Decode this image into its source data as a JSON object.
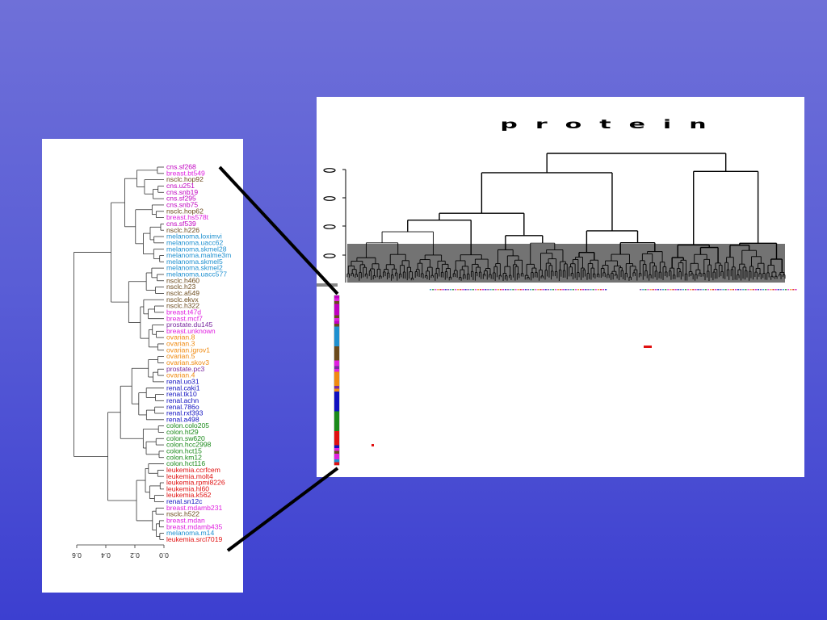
{
  "left_dendrogram": {
    "leaves": [
      {
        "label": "cns.sf268",
        "color": "#c000c0"
      },
      {
        "label": "breast.bt549",
        "color": "#e020e0"
      },
      {
        "label": "nsclc.hop92",
        "color": "#6b4a1c"
      },
      {
        "label": "cns.u251",
        "color": "#c000c0"
      },
      {
        "label": "cns.snb19",
        "color": "#c000c0"
      },
      {
        "label": "cns.sf295",
        "color": "#c000c0"
      },
      {
        "label": "cns.snb75",
        "color": "#c000c0"
      },
      {
        "label": "nsclc.hop62",
        "color": "#6b4a1c"
      },
      {
        "label": "breast.hs578t",
        "color": "#e020e0"
      },
      {
        "label": "cns.sf539",
        "color": "#c000c0"
      },
      {
        "label": "nsclc.h226",
        "color": "#6b4a1c"
      },
      {
        "label": "melanoma.loximvi",
        "color": "#1e90d0"
      },
      {
        "label": "melanoma.uacc62",
        "color": "#1e90d0"
      },
      {
        "label": "melanoma.skmel28",
        "color": "#1e90d0"
      },
      {
        "label": "melanoma.malme3m",
        "color": "#1e90d0"
      },
      {
        "label": "melanoma.skmel5",
        "color": "#1e90d0"
      },
      {
        "label": "melanoma.skmel2",
        "color": "#1e90d0"
      },
      {
        "label": "melanoma.uacc577",
        "color": "#1e90d0"
      },
      {
        "label": "nsclc.h460",
        "color": "#6b4a1c"
      },
      {
        "label": "nsclc.h23",
        "color": "#6b4a1c"
      },
      {
        "label": "nsclc.a549",
        "color": "#6b4a1c"
      },
      {
        "label": "nsclc.ekvx",
        "color": "#6b4a1c"
      },
      {
        "label": "nsclc.h322",
        "color": "#6b4a1c"
      },
      {
        "label": "breast.t47d",
        "color": "#e020e0"
      },
      {
        "label": "breast.mcf7",
        "color": "#e020e0"
      },
      {
        "label": "prostate.du145",
        "color": "#7a2aa0"
      },
      {
        "label": "breast.unknown",
        "color": "#e020e0"
      },
      {
        "label": "ovarian.8",
        "color": "#f08a10"
      },
      {
        "label": "ovarian.3",
        "color": "#f08a10"
      },
      {
        "label": "ovarian.igrov1",
        "color": "#f08a10"
      },
      {
        "label": "ovarian.5",
        "color": "#f08a10"
      },
      {
        "label": "ovarian.skov3",
        "color": "#f08a10"
      },
      {
        "label": "prostate.pc3",
        "color": "#7a2aa0"
      },
      {
        "label": "ovarian.4",
        "color": "#f08a10"
      },
      {
        "label": "renal.uo31",
        "color": "#1010c0"
      },
      {
        "label": "renal.caki1",
        "color": "#1010c0"
      },
      {
        "label": "renal.tk10",
        "color": "#1010c0"
      },
      {
        "label": "renal.achn",
        "color": "#1010c0"
      },
      {
        "label": "renal.786o",
        "color": "#1010c0"
      },
      {
        "label": "renal.rxf393",
        "color": "#1010c0"
      },
      {
        "label": "renal.a498",
        "color": "#1010c0"
      },
      {
        "label": "colon.colo205",
        "color": "#1a8a1a"
      },
      {
        "label": "colon.ht29",
        "color": "#1a8a1a"
      },
      {
        "label": "colon.sw620",
        "color": "#1a8a1a"
      },
      {
        "label": "colon.hcc2998",
        "color": "#1a8a1a"
      },
      {
        "label": "colon.hct15",
        "color": "#1a8a1a"
      },
      {
        "label": "colon.km12",
        "color": "#1a8a1a"
      },
      {
        "label": "colon.hct116",
        "color": "#1a8a1a"
      },
      {
        "label": "leukemia.ccrfcem",
        "color": "#e01010"
      },
      {
        "label": "leukemia.molt4",
        "color": "#e01010"
      },
      {
        "label": "leukemia.rpmi8226",
        "color": "#e01010"
      },
      {
        "label": "leukemia.hl60",
        "color": "#e01010"
      },
      {
        "label": "leukemia.k562",
        "color": "#e01010"
      },
      {
        "label": "renal.sn12c",
        "color": "#1010c0"
      },
      {
        "label": "breast.mdamb231",
        "color": "#e020e0"
      },
      {
        "label": "nsclc.h522",
        "color": "#6b4a1c"
      },
      {
        "label": "breast.mdan",
        "color": "#e020e0"
      },
      {
        "label": "breast.mdamb435",
        "color": "#e020e0"
      },
      {
        "label": "melanoma.m14",
        "color": "#1e90d0"
      },
      {
        "label": "leukemia.srcl7019",
        "color": "#e01010"
      }
    ],
    "axis_ticks": [
      "0.6",
      "0.4",
      "0.2",
      "0.0"
    ]
  },
  "protein_panel": {
    "title": "protein",
    "accent_red": "#e01010"
  }
}
